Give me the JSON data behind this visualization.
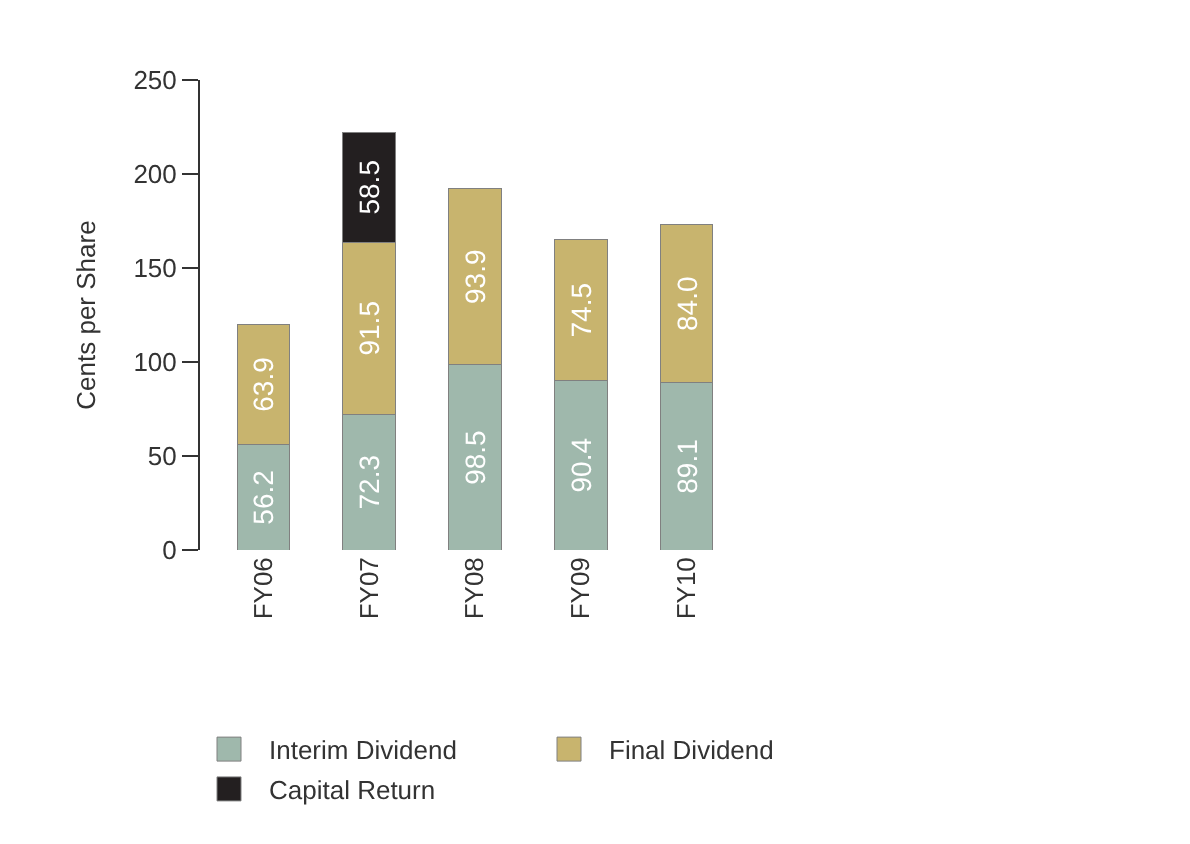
{
  "chart_data": {
    "type": "bar",
    "stacked": true,
    "ylabel": "Cents per Share",
    "categories": [
      "FY06",
      "FY07",
      "FY08",
      "FY09",
      "FY10"
    ],
    "series": [
      {
        "name": "Interim Dividend",
        "color": "#9fb8ac",
        "values": [
          56.2,
          72.3,
          98.5,
          90.4,
          89.1
        ],
        "value_labels": [
          "56.2",
          "72.3",
          "98.5",
          "90.4",
          "89.1"
        ]
      },
      {
        "name": "Final Dividend",
        "color": "#c8b46e",
        "values": [
          63.9,
          91.5,
          93.9,
          74.5,
          84.0
        ],
        "value_labels": [
          "63.9",
          "91.5",
          "93.9",
          "74.5",
          "84.0"
        ]
      },
      {
        "name": "Capital Return",
        "color": "#231f20",
        "values": [
          null,
          58.5,
          null,
          null,
          null
        ],
        "value_labels": [
          null,
          "58.5",
          null,
          null,
          null
        ]
      }
    ],
    "ylim": [
      0,
      250
    ],
    "yticks": [
      0,
      50,
      100,
      150,
      200,
      250
    ],
    "legend": "bottom"
  }
}
